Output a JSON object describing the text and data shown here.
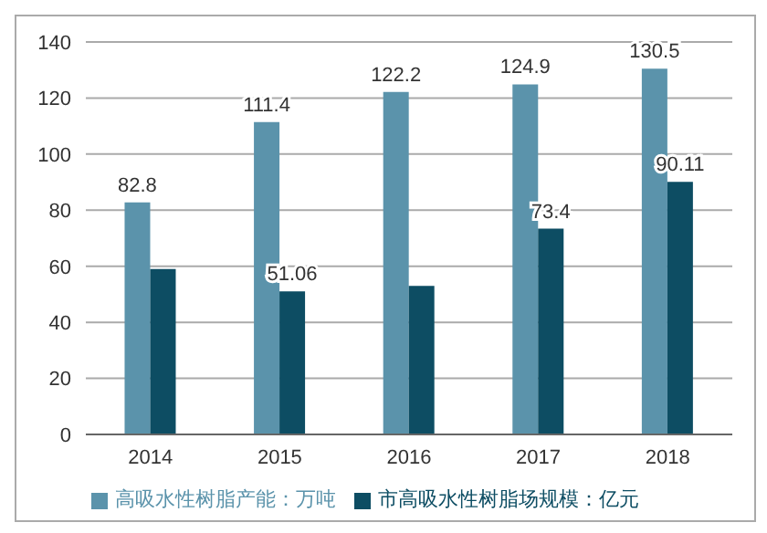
{
  "chart_data": {
    "type": "bar",
    "categories": [
      "2014",
      "2015",
      "2016",
      "2017",
      "2018"
    ],
    "series": [
      {
        "name": "高吸水性树脂产能：万吨",
        "color": "#5b93ab",
        "values": [
          82.8,
          111.4,
          122.2,
          124.9,
          130.5
        ],
        "value_labels": [
          "82.8",
          "111.4",
          "122.2",
          "124.9",
          "130.5"
        ]
      },
      {
        "name": "市高吸水性树脂场规模：亿元",
        "color": "#0d4d63",
        "values": [
          59,
          51.06,
          53,
          73.4,
          90.11
        ],
        "value_labels": [
          null,
          "51.06",
          null,
          "73.4",
          "90.11"
        ]
      }
    ],
    "ylim": [
      0,
      140
    ],
    "yticks": [
      0,
      20,
      40,
      60,
      80,
      100,
      120,
      140
    ],
    "grid": "y",
    "legend": "bottom"
  }
}
